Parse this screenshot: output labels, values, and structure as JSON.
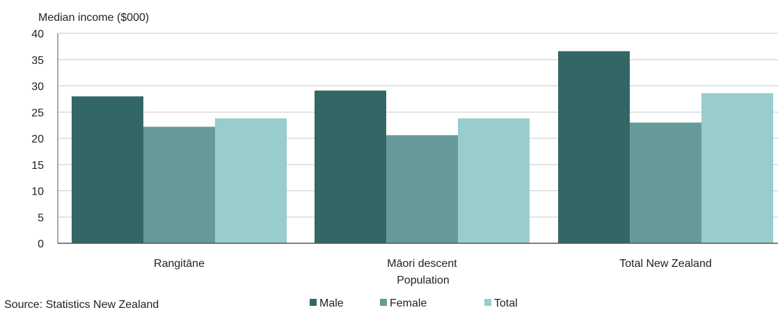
{
  "chart_data": {
    "type": "bar",
    "title": "",
    "ylabel": "Median income ($000)",
    "xlabel": "Population",
    "ylim": [
      0,
      40
    ],
    "yticks": [
      0,
      5,
      10,
      15,
      20,
      25,
      30,
      35,
      40
    ],
    "grid": true,
    "legend_position": "bottom",
    "categories": [
      "Rangitāne",
      "Māori descent",
      "Total New Zealand"
    ],
    "series": [
      {
        "name": "Male",
        "color": "#336666",
        "values": [
          28.0,
          29.1,
          36.6
        ]
      },
      {
        "name": "Female",
        "color": "#669999",
        "values": [
          22.2,
          20.6,
          23.0
        ]
      },
      {
        "name": "Total",
        "color": "#99cccc",
        "values": [
          23.8,
          23.8,
          28.6
        ]
      }
    ]
  },
  "source_note": "Source: Statistics New Zealand"
}
